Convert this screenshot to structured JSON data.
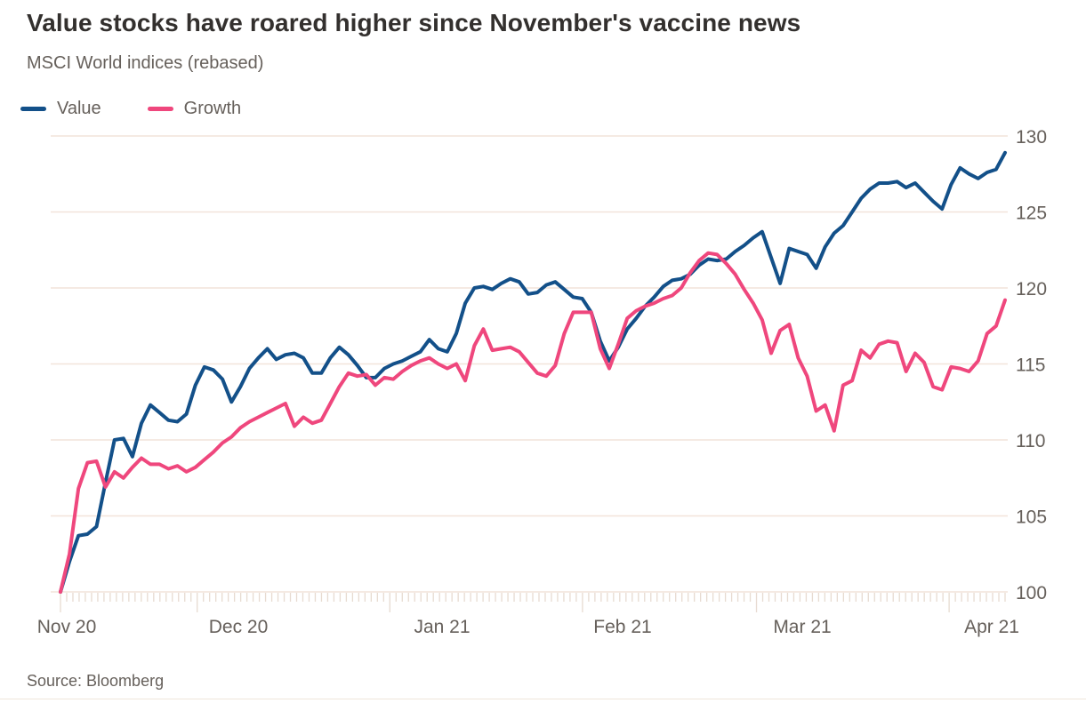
{
  "chart_data": {
    "type": "line",
    "title": "Value stocks have roared higher since November's vaccine news",
    "subtitle": "MSCI World indices (rebased)",
    "source": "Source: Bloomberg",
    "x_tick_labels": [
      "Nov 20",
      "Dec 20",
      "Jan 21",
      "Feb 21",
      "Mar 21",
      "Apr 21"
    ],
    "y_ticks": [
      100,
      105,
      110,
      115,
      120,
      125,
      130
    ],
    "ylim": [
      100,
      130
    ],
    "grid": "horizontal",
    "legend_position": "top-left",
    "colors": {
      "gridline": "#f2e4da",
      "tick": "#e7dbd1",
      "axis_text": "#66605b",
      "title_text": "#33302e"
    },
    "series": [
      {
        "name": "Value",
        "color": "#135089",
        "values": [
          100.0,
          102.0,
          103.7,
          103.8,
          104.3,
          107.2,
          110.0,
          110.1,
          108.9,
          111.1,
          112.3,
          111.8,
          111.3,
          111.2,
          111.7,
          113.6,
          114.8,
          114.6,
          114.0,
          112.5,
          113.5,
          114.7,
          115.4,
          116.0,
          115.3,
          115.6,
          115.7,
          115.4,
          114.4,
          114.4,
          115.4,
          116.1,
          115.6,
          114.9,
          114.1,
          114.1,
          114.7,
          115.0,
          115.2,
          115.5,
          115.8,
          116.6,
          116.0,
          115.8,
          117.0,
          119.0,
          120.0,
          120.1,
          119.9,
          120.3,
          120.6,
          120.4,
          119.6,
          119.7,
          120.2,
          120.4,
          119.9,
          119.4,
          119.3,
          118.4,
          116.5,
          115.2,
          116.1,
          117.3,
          118.0,
          118.8,
          119.4,
          120.1,
          120.5,
          120.6,
          120.9,
          121.5,
          121.9,
          121.8,
          121.9,
          122.4,
          122.8,
          123.3,
          123.7,
          122.0,
          120.3,
          122.6,
          122.4,
          122.2,
          121.3,
          122.7,
          123.6,
          124.1,
          125.0,
          125.9,
          126.5,
          126.9,
          126.9,
          127.0,
          126.6,
          126.9,
          126.3,
          125.7,
          125.2,
          126.8,
          127.9,
          127.5,
          127.2,
          127.6,
          127.8,
          128.9
        ]
      },
      {
        "name": "Growth",
        "color": "#ef477d",
        "values": [
          100.0,
          102.5,
          106.8,
          108.5,
          108.6,
          106.9,
          107.9,
          107.5,
          108.2,
          108.8,
          108.4,
          108.4,
          108.1,
          108.3,
          107.9,
          108.2,
          108.7,
          109.2,
          109.8,
          110.2,
          110.8,
          111.2,
          111.5,
          111.8,
          112.1,
          112.4,
          110.9,
          111.5,
          111.1,
          111.3,
          112.4,
          113.5,
          114.4,
          114.2,
          114.3,
          113.6,
          114.1,
          114.0,
          114.5,
          114.9,
          115.2,
          115.4,
          115.0,
          114.7,
          115.0,
          113.9,
          116.2,
          117.3,
          115.9,
          116.0,
          116.1,
          115.8,
          115.1,
          114.4,
          114.2,
          114.9,
          117.0,
          118.4,
          118.4,
          118.4,
          116.0,
          114.7,
          116.3,
          118.0,
          118.5,
          118.8,
          119.0,
          119.3,
          119.5,
          120.0,
          121.0,
          121.8,
          122.3,
          122.2,
          121.6,
          120.9,
          119.9,
          119.0,
          117.9,
          115.7,
          117.2,
          117.6,
          115.4,
          114.2,
          111.9,
          112.3,
          110.6,
          113.6,
          113.9,
          115.9,
          115.4,
          116.3,
          116.5,
          116.4,
          114.5,
          115.7,
          115.1,
          113.5,
          113.3,
          114.8,
          114.7,
          114.5,
          115.2,
          117.0,
          117.5,
          119.2
        ]
      }
    ]
  }
}
